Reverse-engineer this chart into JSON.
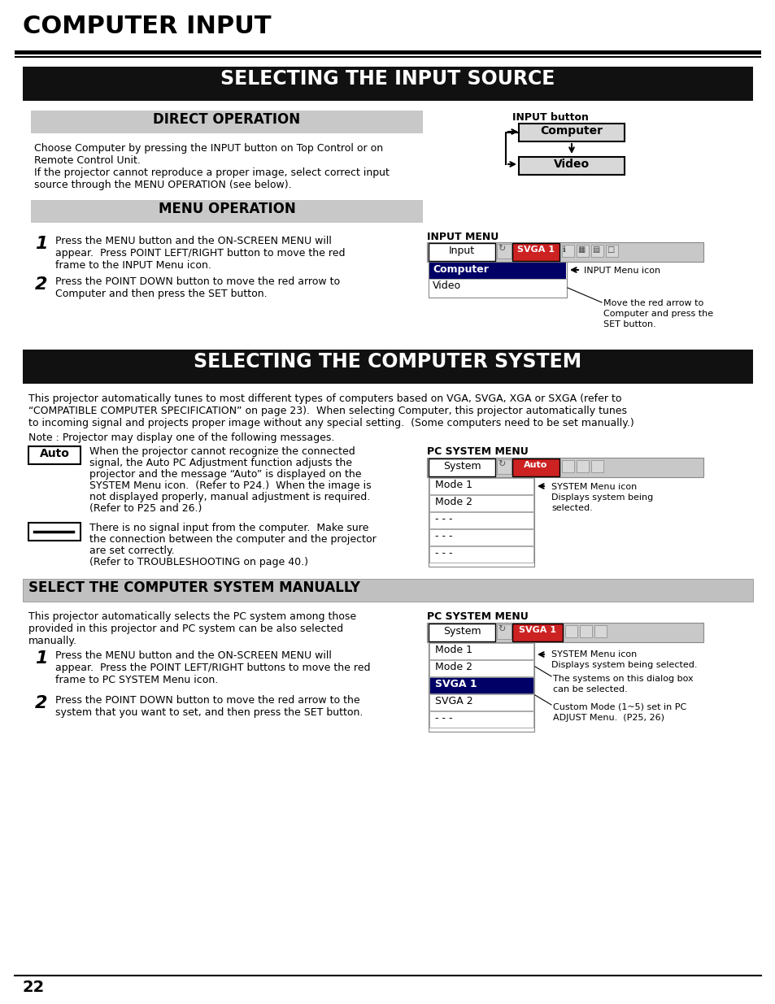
{
  "bg_color": "#ffffff",
  "page_title": "COMPUTER INPUT",
  "page_number": "22",
  "section1_title": "SELECTING THE INPUT SOURCE",
  "section2_title": "SELECTING THE COMPUTER SYSTEM",
  "direct_op_title": "DIRECT OPERATION",
  "menu_op_title": "MENU OPERATION",
  "select_manual_title": "SELECT THE COMPUTER SYSTEM MANUALLY",
  "direct_op_text1": "Choose Computer by pressing the INPUT button on Top Control or on",
  "direct_op_text2": "Remote Control Unit.",
  "direct_op_text3": "If the projector cannot reproduce a proper image, select correct input",
  "direct_op_text4": "source through the MENU OPERATION (see below).",
  "input_button_label": "INPUT button",
  "input_computer_label": "Computer",
  "input_video_label": "Video",
  "step1_num": "1",
  "step1_line1": "Press the MENU button and the ON-SCREEN MENU will",
  "step1_line2": "appear.  Press POINT LEFT/RIGHT button to move the red",
  "step1_line3": "frame to the INPUT Menu icon.",
  "step2_num": "2",
  "step2_line1": "Press the POINT DOWN button to move the red arrow to",
  "step2_line2": "Computer and then press the SET button.",
  "input_menu_label": "INPUT MENU",
  "input_menu_input": "Input",
  "input_menu_svga": "SVGA 1",
  "input_menu_computer": "Computer",
  "input_menu_video": "Video",
  "input_menu_icon_label": "INPUT Menu icon",
  "input_menu_move_line1": "Move the red arrow to",
  "input_menu_move_line2": "Computer and press the",
  "input_menu_move_line3": "SET button.",
  "section2_body_line1": "This projector automatically tunes to most different types of computers based on VGA, SVGA, XGA or SXGA (refer to",
  "section2_body_line2": "“COMPATIBLE COMPUTER SPECIFICATION” on page 23).  When selecting Computer, this projector automatically tunes",
  "section2_body_line3": "to incoming signal and projects proper image without any special setting.  (Some computers need to be set manually.)",
  "section2_body_line4": "Note : Projector may display one of the following messages.",
  "auto_label": "Auto",
  "auto_text_line1": "When the projector cannot recognize the connected",
  "auto_text_line2": "signal, the Auto PC Adjustment function adjusts the",
  "auto_text_line3": "projector and the message “Auto” is displayed on the",
  "auto_text_line4": "SYSTEM Menu icon.  (Refer to P24.)  When the image is",
  "auto_text_line5": "not displayed properly, manual adjustment is required.",
  "auto_text_line6": "(Refer to P25 and 26.)",
  "dash_text_line1": "There is no signal input from the computer.  Make sure",
  "dash_text_line2": "the connection between the computer and the projector",
  "dash_text_line3": "are set correctly.",
  "dash_text_line4": "(Refer to TROUBLESHOOTING on page 40.)",
  "pc_system_menu_label1": "PC SYSTEM MENU",
  "pc_system_system": "System",
  "pc_system_auto": "Auto",
  "pc_system_mode1": "Mode 1",
  "pc_system_mode2": "Mode 2",
  "pc_system_dots": "- - -",
  "system_menu_icon_line1": "SYSTEM Menu icon",
  "system_menu_icon_line2": "Displays system being",
  "system_menu_icon_line3": "selected.",
  "select_manual_body_line1": "This projector automatically selects the PC system among those",
  "select_manual_body_line2": "provided in this projector and PC system can be also selected",
  "select_manual_body_line3": "manually.",
  "step3_num": "1",
  "step3_line1": "Press the MENU button and the ON-SCREEN MENU will",
  "step3_line2": "appear.  Press the POINT LEFT/RIGHT buttons to move the red",
  "step3_line3": "frame to PC SYSTEM Menu icon.",
  "step4_num": "2",
  "step4_line1": "Press the POINT DOWN button to move the red arrow to the",
  "step4_line2": "system that you want to set, and then press the SET button.",
  "pc_system_menu_label2": "PC SYSTEM MENU",
  "pc_system_svga": "SVGA 1",
  "pc_system_mode1b": "Mode 1",
  "pc_system_mode2b": "Mode 2",
  "pc_system_svga1b": "SVGA 1",
  "pc_system_svga2b": "SVGA 2",
  "pc_system_dotsb": "- - -",
  "system_menu_icon2_line1": "SYSTEM Menu icon",
  "system_menu_icon2_line2": "Displays system being selected.",
  "system_select_line1": "The systems on this dialog box",
  "system_select_line2": "can be selected.",
  "custom_mode_line1": "Custom Mode (1~5) set in PC",
  "custom_mode_line2": "ADJUST Menu.  (P25, 26)"
}
